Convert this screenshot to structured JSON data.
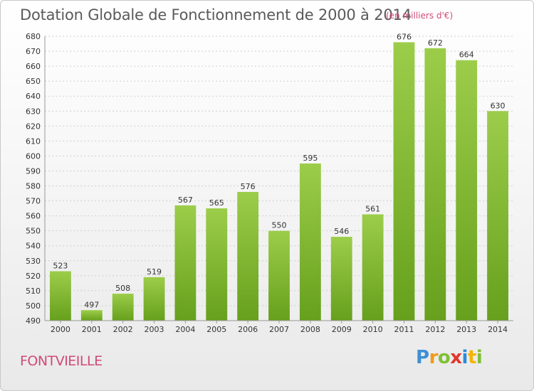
{
  "chart_data": {
    "type": "bar",
    "title": "Dotation Globale de Fonctionnement de 2000 à 2014",
    "unit_note": "(en milliers d'€)",
    "categories": [
      "2000",
      "2001",
      "2002",
      "2003",
      "2004",
      "2005",
      "2006",
      "2007",
      "2008",
      "2009",
      "2010",
      "2011",
      "2012",
      "2013",
      "2014"
    ],
    "values": [
      523,
      497,
      508,
      519,
      567,
      565,
      576,
      550,
      595,
      546,
      561,
      676,
      672,
      664,
      630
    ],
    "ylim": [
      490,
      680
    ],
    "yticks": [
      490,
      500,
      510,
      520,
      530,
      540,
      550,
      560,
      570,
      580,
      590,
      600,
      610,
      620,
      630,
      640,
      650,
      660,
      670,
      680
    ],
    "grid": true,
    "bar_color_top": "#9ccd4a",
    "bar_color_bottom": "#66a01c"
  },
  "footer": {
    "commune": "FONTVIEILLE",
    "logo": "Proxiti"
  }
}
